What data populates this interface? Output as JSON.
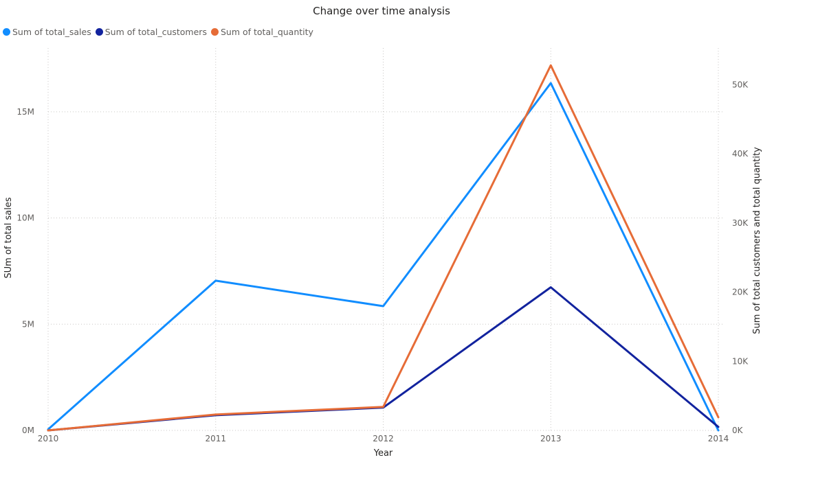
{
  "chart_data": {
    "type": "line",
    "title": "Change over time analysis",
    "xlabel": "Year",
    "ylabel": "SUm of total sales",
    "y2label": "Sum of total customers and total quantity",
    "categories": [
      "2010",
      "2011",
      "2012",
      "2013",
      "2014"
    ],
    "y_ticks": [
      "0M",
      "5M",
      "10M",
      "15M"
    ],
    "y_tick_values": [
      0,
      5000000,
      10000000,
      15000000
    ],
    "y2_ticks": [
      "0K",
      "10K",
      "20K",
      "30K",
      "40K",
      "50K"
    ],
    "y2_tick_values": [
      0,
      10000,
      20000,
      30000,
      40000,
      50000
    ],
    "ylim": [
      0,
      18000000
    ],
    "y2lim": [
      0,
      55300
    ],
    "grid": true,
    "legend_position": "top-left",
    "series": [
      {
        "name": "Sum of total_sales",
        "axis": "left",
        "color": "#118DFF",
        "values": [
          50000,
          7050000,
          5850000,
          16350000,
          0
        ]
      },
      {
        "name": "Sum of total_customers",
        "axis": "right",
        "color": "#12239E",
        "values": [
          0,
          2200,
          3300,
          20700,
          500
        ]
      },
      {
        "name": "Sum of total_quantity",
        "axis": "right",
        "color": "#E66C37",
        "values": [
          0,
          2300,
          3400,
          52800,
          1900
        ]
      }
    ]
  }
}
